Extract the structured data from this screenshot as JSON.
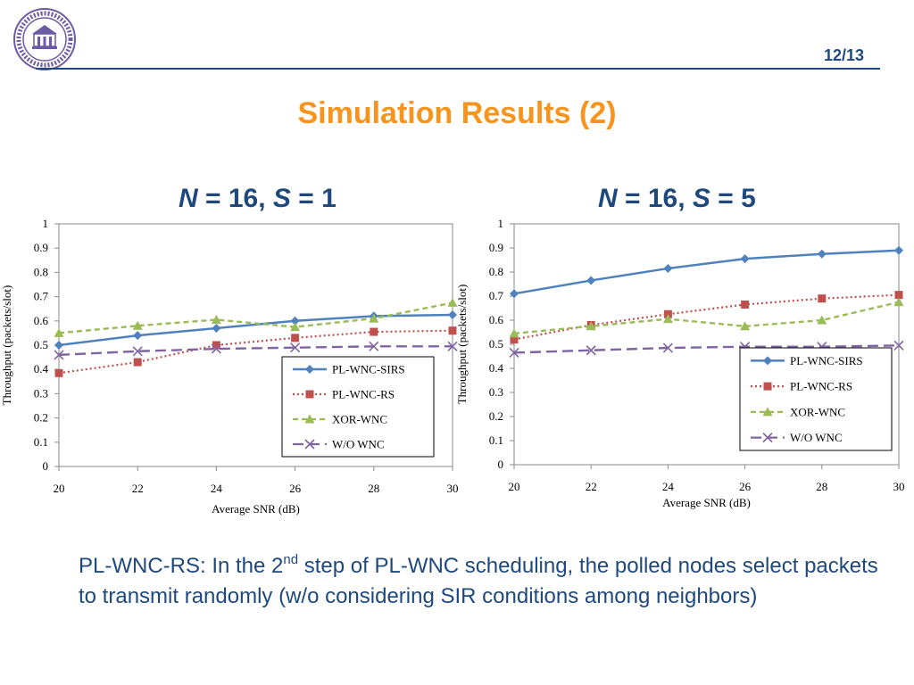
{
  "header": {
    "page_number": "12/13",
    "title": "Simulation Results (2)"
  },
  "logo": {
    "icon": "university-seal-icon",
    "color": "#6b5aa6"
  },
  "colors": {
    "title": "#f7941d",
    "text": "#1f497d",
    "series": [
      "#4f81bd",
      "#c0504d",
      "#9bbb59",
      "#8064a2"
    ]
  },
  "chart_headings": [
    {
      "n_var": "N",
      "n_rest": " = 16, ",
      "s_var": "S",
      "s_rest": " = 1"
    },
    {
      "n_var": "N",
      "n_rest": " = 16, ",
      "s_var": "S",
      "s_rest": " = 5"
    }
  ],
  "chart_data": [
    {
      "type": "line",
      "xlabel": "Average SNR (dB)",
      "ylabel": "Throughput (packets/slot)",
      "x": [
        20,
        22,
        24,
        26,
        28,
        30
      ],
      "xlim": [
        20,
        30
      ],
      "ylim": [
        0,
        1
      ],
      "xticks": [
        "20",
        "22",
        "24",
        "26",
        "28",
        "30"
      ],
      "yticks": [
        "0",
        "0.1",
        "0.2",
        "0.3",
        "0.4",
        "0.5",
        "0.6",
        "0.7",
        "0.8",
        "0.9",
        "1"
      ],
      "grid": false,
      "legend_position": "lower-right",
      "series": [
        {
          "name": "PL-WNC-SIRS",
          "values": [
            0.5,
            0.54,
            0.57,
            0.6,
            0.62,
            0.625
          ],
          "marker": "diamond",
          "dash": "solid"
        },
        {
          "name": "PL-WNC-RS",
          "values": [
            0.385,
            0.43,
            0.5,
            0.53,
            0.555,
            0.56
          ],
          "marker": "square",
          "dash": "dotted"
        },
        {
          "name": "XOR-WNC",
          "values": [
            0.55,
            0.58,
            0.605,
            0.575,
            0.61,
            0.675
          ],
          "marker": "triangle",
          "dash": "dashed"
        },
        {
          "name": "W/O WNC",
          "values": [
            0.46,
            0.475,
            0.485,
            0.49,
            0.495,
            0.495
          ],
          "marker": "x",
          "dash": "longdash"
        }
      ]
    },
    {
      "type": "line",
      "xlabel": "Average SNR (dB)",
      "ylabel": "Throughput (packets/slot)",
      "x": [
        20,
        22,
        24,
        26,
        28,
        30
      ],
      "xlim": [
        20,
        30
      ],
      "ylim": [
        0,
        1
      ],
      "xticks": [
        "20",
        "22",
        "24",
        "26",
        "28",
        "30"
      ],
      "yticks": [
        "0",
        "0.1",
        "0.2",
        "0.3",
        "0.4",
        "0.5",
        "0.6",
        "0.7",
        "0.8",
        "0.9",
        "1"
      ],
      "grid": false,
      "legend_position": "lower-right",
      "series": [
        {
          "name": "PL-WNC-SIRS",
          "values": [
            0.71,
            0.765,
            0.815,
            0.855,
            0.875,
            0.89
          ],
          "marker": "diamond",
          "dash": "solid"
        },
        {
          "name": "PL-WNC-RS",
          "values": [
            0.52,
            0.58,
            0.625,
            0.665,
            0.69,
            0.705
          ],
          "marker": "square",
          "dash": "dotted"
        },
        {
          "name": "XOR-WNC",
          "values": [
            0.545,
            0.575,
            0.605,
            0.575,
            0.6,
            0.675
          ],
          "marker": "triangle",
          "dash": "dashed"
        },
        {
          "name": "W/O WNC",
          "values": [
            0.465,
            0.475,
            0.485,
            0.49,
            0.49,
            0.495
          ],
          "marker": "x",
          "dash": "longdash"
        }
      ]
    }
  ],
  "note": {
    "part1": "PL-WNC-RS: In the 2",
    "sup": "nd",
    "part2": " step of PL-WNC scheduling, the polled nodes select packets to transmit randomly (w/o considering SIR conditions among neighbors)"
  }
}
